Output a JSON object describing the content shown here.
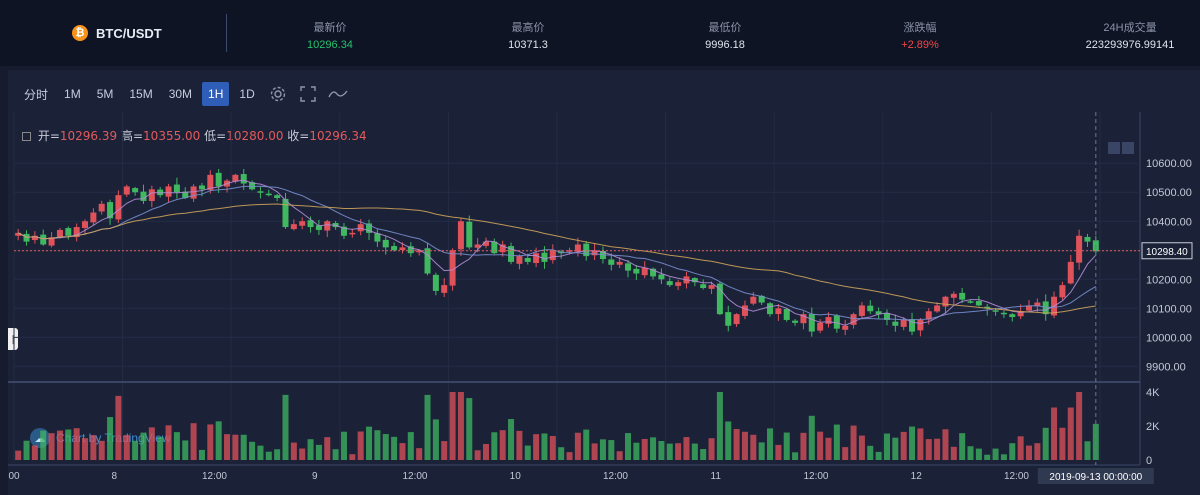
{
  "header": {
    "pair": "BTC/USDT",
    "coin_icon": "bitcoin-icon",
    "stats": [
      {
        "label": "最新价",
        "value": "10296.34",
        "color": "#26c06d"
      },
      {
        "label": "最高价",
        "value": "10371.3",
        "color": "#dfe4ee"
      },
      {
        "label": "最低价",
        "value": "9996.18",
        "color": "#dfe4ee"
      },
      {
        "label": "涨跌幅",
        "value": "+2.89%",
        "color": "#f04848"
      },
      {
        "label": "24H成交量",
        "value": "223293976.99141",
        "color": "#dfe4ee"
      }
    ]
  },
  "toolbar": {
    "intervals": [
      "分时",
      "1M",
      "5M",
      "15M",
      "30M",
      "1H",
      "1D"
    ],
    "active": "1H",
    "icons": [
      "settings-icon",
      "fullscreen-icon",
      "indicator-icon"
    ]
  },
  "ohlc": {
    "open_label": "开=",
    "open": "10296.39",
    "high_label": "高=",
    "high": "10355.00",
    "low_label": "低=",
    "low": "10280.00",
    "close_label": "收=",
    "close": "10296.34"
  },
  "watermark": "Chart by TradingView",
  "chart_data": {
    "type": "candlestick",
    "price_axis": {
      "ticks": [
        "10600.00",
        "10500.00",
        "10400.00",
        "10300.00",
        "10200.00",
        "10100.00",
        "10000.00",
        "9900.00"
      ],
      "range": [
        9860,
        10680
      ]
    },
    "current_price_label": "10298.40",
    "volume_axis": {
      "ticks": [
        "4K",
        "2K",
        "0"
      ],
      "max": 4300
    },
    "time_labels": [
      {
        "label": "00",
        "idx": 0
      },
      {
        "label": "8",
        "idx": 12
      },
      {
        "label": "12:00",
        "idx": 24
      },
      {
        "label": "9",
        "idx": 36
      },
      {
        "label": "12:00",
        "idx": 48
      },
      {
        "label": "10",
        "idx": 60
      },
      {
        "label": "12:00",
        "idx": 72
      },
      {
        "label": "11",
        "idx": 84
      },
      {
        "label": "12:00",
        "idx": 96
      },
      {
        "label": "12",
        "idx": 108
      },
      {
        "label": "12:00",
        "idx": 120
      }
    ],
    "crosshair_time": "2019-09-13 00:00:00",
    "colors": {
      "up": "#e0525a",
      "down": "#3fb860",
      "ma1": "#b48cd6",
      "ma2": "#7a8fd0",
      "ma3": "#cfa35a"
    },
    "close": [
      10360,
      10330,
      10350,
      10320,
      10345,
      10370,
      10350,
      10380,
      10400,
      10430,
      10460,
      10410,
      10490,
      10520,
      10500,
      10470,
      10510,
      10490,
      10520,
      10500,
      10480,
      10520,
      10510,
      10560,
      10520,
      10540,
      10560,
      10530,
      10510,
      10500,
      10490,
      10480,
      10380,
      10390,
      10400,
      10380,
      10370,
      10400,
      10380,
      10350,
      10360,
      10390,
      10360,
      10330,
      10310,
      10300,
      10310,
      10290,
      10300,
      10220,
      10160,
      10180,
      10300,
      10400,
      10310,
      10320,
      10330,
      10290,
      10320,
      10260,
      10280,
      10260,
      10290,
      10260,
      10300,
      10290,
      10300,
      10320,
      10280,
      10300,
      10270,
      10250,
      10260,
      10230,
      10220,
      10240,
      10210,
      10200,
      10180,
      10190,
      10210,
      10190,
      10170,
      10180,
      10080,
      10040,
      10080,
      10110,
      10140,
      10120,
      10080,
      10100,
      10060,
      10050,
      10080,
      10020,
      10050,
      10070,
      10030,
      10040,
      10080,
      10110,
      10090,
      10080,
      10060,
      10040,
      10060,
      10020,
      10060,
      10090,
      10110,
      10140,
      10150,
      10130,
      10120,
      10110,
      10100,
      10090,
      10080,
      10070,
      10090,
      10110,
      10120,
      10080,
      10140,
      10180,
      10260,
      10350,
      10330,
      10296
    ]
  }
}
